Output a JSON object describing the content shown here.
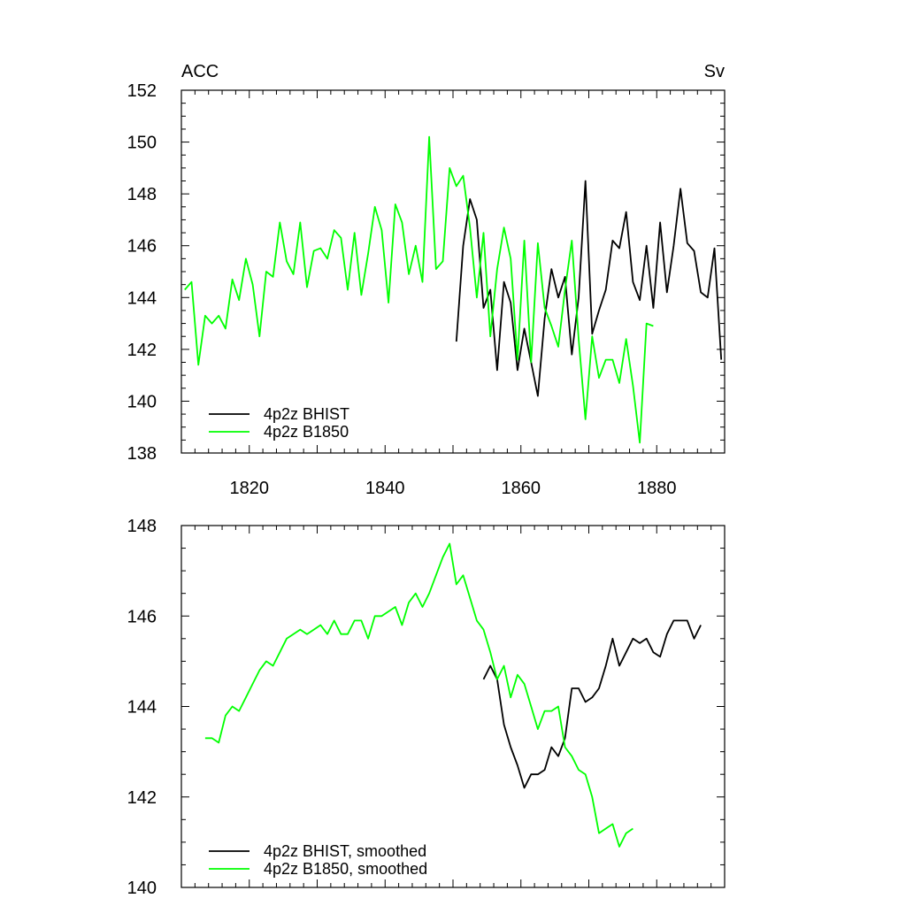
{
  "chart_data": [
    {
      "type": "line",
      "left_string": "ACC",
      "right_string": "Sv",
      "xlim": [
        1810,
        1890
      ],
      "ylim": [
        138,
        152
      ],
      "xticks": [
        1820,
        1840,
        1860,
        1880
      ],
      "yticks": [
        138,
        140,
        142,
        144,
        146,
        148,
        150,
        152
      ],
      "x_tick_labels": [
        "1820",
        "1840",
        "1860",
        "1880"
      ],
      "y_tick_labels": [
        "138",
        "140",
        "142",
        "144",
        "146",
        "148",
        "150",
        "152"
      ],
      "grid": false,
      "legend_position": "bottom-left",
      "series": [
        {
          "name": "4p2z BHIST",
          "color": "#000000",
          "x": [
            1850.5,
            1851.5,
            1852.5,
            1853.5,
            1854.5,
            1855.5,
            1856.5,
            1857.5,
            1858.5,
            1859.5,
            1860.5,
            1861.5,
            1862.5,
            1863.5,
            1864.5,
            1865.5,
            1866.5,
            1867.5,
            1868.5,
            1869.5,
            1870.5,
            1871.5,
            1872.5,
            1873.5,
            1874.5,
            1875.5,
            1876.5,
            1877.5,
            1878.5,
            1879.5,
            1880.5,
            1881.5,
            1882.5,
            1883.5,
            1884.5,
            1885.5,
            1886.5,
            1887.5,
            1888.5,
            1889.5
          ],
          "values": [
            142.3,
            146.0,
            147.8,
            147.0,
            143.6,
            144.3,
            141.2,
            144.6,
            143.8,
            141.2,
            142.8,
            141.5,
            140.2,
            143.2,
            145.1,
            144.0,
            144.8,
            141.8,
            144.0,
            148.5,
            142.6,
            143.5,
            144.3,
            146.2,
            145.9,
            147.3,
            144.6,
            143.9,
            146.0,
            143.6,
            146.9,
            144.2,
            146.0,
            148.2,
            146.1,
            145.8,
            144.2,
            144.0,
            145.9,
            141.6
          ]
        },
        {
          "name": "4p2z B1850",
          "color": "#00ff00",
          "x": [
            1810.5,
            1811.5,
            1812.5,
            1813.5,
            1814.5,
            1815.5,
            1816.5,
            1817.5,
            1818.5,
            1819.5,
            1820.5,
            1821.5,
            1822.5,
            1823.5,
            1824.5,
            1825.5,
            1826.5,
            1827.5,
            1828.5,
            1829.5,
            1830.5,
            1831.5,
            1832.5,
            1833.5,
            1834.5,
            1835.5,
            1836.5,
            1837.5,
            1838.5,
            1839.5,
            1840.5,
            1841.5,
            1842.5,
            1843.5,
            1844.5,
            1845.5,
            1846.5,
            1847.5,
            1848.5,
            1849.5,
            1850.5,
            1851.5,
            1852.5,
            1853.5,
            1854.5,
            1855.5,
            1856.5,
            1857.5,
            1858.5,
            1859.5,
            1860.5,
            1861.5,
            1862.5,
            1863.5,
            1864.5,
            1865.5,
            1866.5,
            1867.5,
            1868.5,
            1869.5,
            1870.5,
            1871.5,
            1872.5,
            1873.5,
            1874.5,
            1875.5,
            1876.5,
            1877.5,
            1878.5,
            1879.5
          ],
          "values": [
            144.3,
            144.6,
            141.4,
            143.3,
            143.0,
            143.3,
            142.8,
            144.7,
            143.9,
            145.5,
            144.5,
            142.5,
            145.0,
            144.8,
            146.9,
            145.4,
            144.9,
            146.9,
            144.4,
            145.8,
            145.9,
            145.5,
            146.6,
            146.3,
            144.3,
            146.5,
            144.1,
            145.7,
            147.5,
            146.6,
            143.8,
            147.6,
            146.9,
            144.9,
            146.0,
            144.6,
            150.2,
            145.1,
            145.4,
            149.0,
            148.3,
            148.7,
            146.7,
            144.0,
            146.5,
            142.5,
            145.1,
            146.7,
            145.5,
            141.6,
            146.2,
            141.5,
            146.1,
            143.6,
            142.9,
            142.1,
            144.3,
            146.2,
            142.4,
            139.3,
            142.5,
            140.9,
            141.6,
            141.6,
            140.7,
            142.4,
            140.6,
            138.4,
            143.0,
            142.9
          ]
        }
      ]
    },
    {
      "type": "line",
      "xlim": [
        1810,
        1890
      ],
      "ylim": [
        140,
        148
      ],
      "xticks": [
        1820,
        1840,
        1860,
        1880
      ],
      "yticks": [
        140,
        142,
        144,
        146,
        148
      ],
      "y_tick_labels": [
        "140",
        "142",
        "144",
        "146",
        "148"
      ],
      "grid": false,
      "legend_position": "bottom-left",
      "series": [
        {
          "name": "4p2z BHIST, smoothed",
          "color": "#000000",
          "x": [
            1854.5,
            1855.5,
            1856.5,
            1857.5,
            1858.5,
            1859.5,
            1860.5,
            1861.5,
            1862.5,
            1863.5,
            1864.5,
            1865.5,
            1866.5,
            1867.5,
            1868.5,
            1869.5,
            1870.5,
            1871.5,
            1872.5,
            1873.5,
            1874.5,
            1875.5,
            1876.5,
            1877.5,
            1878.5,
            1879.5,
            1880.5,
            1881.5,
            1882.5,
            1883.5,
            1884.5,
            1885.5,
            1886.5
          ],
          "values": [
            144.6,
            144.9,
            144.6,
            143.6,
            143.1,
            142.7,
            142.2,
            142.5,
            142.5,
            142.6,
            143.1,
            142.9,
            143.3,
            144.4,
            144.4,
            144.1,
            144.2,
            144.4,
            144.9,
            145.5,
            144.9,
            145.2,
            145.5,
            145.4,
            145.5,
            145.2,
            145.1,
            145.6,
            145.9,
            145.9,
            145.9,
            145.5,
            145.8
          ]
        },
        {
          "name": "4p2z B1850, smoothed",
          "color": "#00ff00",
          "x": [
            1813.5,
            1814.5,
            1815.5,
            1816.5,
            1817.5,
            1818.5,
            1819.5,
            1820.5,
            1821.5,
            1822.5,
            1823.5,
            1824.5,
            1825.5,
            1826.5,
            1827.5,
            1828.5,
            1829.5,
            1830.5,
            1831.5,
            1832.5,
            1833.5,
            1834.5,
            1835.5,
            1836.5,
            1837.5,
            1838.5,
            1839.5,
            1840.5,
            1841.5,
            1842.5,
            1843.5,
            1844.5,
            1845.5,
            1846.5,
            1847.5,
            1848.5,
            1849.5,
            1850.5,
            1851.5,
            1852.5,
            1853.5,
            1854.5,
            1855.5,
            1856.5,
            1857.5,
            1858.5,
            1859.5,
            1860.5,
            1861.5,
            1862.5,
            1863.5,
            1864.5,
            1865.5,
            1866.5,
            1867.5,
            1868.5,
            1869.5,
            1870.5,
            1871.5,
            1872.5,
            1873.5,
            1874.5,
            1875.5,
            1876.5
          ],
          "values": [
            143.3,
            143.3,
            143.2,
            143.8,
            144.0,
            143.9,
            144.2,
            144.5,
            144.8,
            145.0,
            144.9,
            145.2,
            145.5,
            145.6,
            145.7,
            145.6,
            145.7,
            145.8,
            145.6,
            145.9,
            145.6,
            145.6,
            145.9,
            145.9,
            145.5,
            146.0,
            146.0,
            146.1,
            146.2,
            145.8,
            146.3,
            146.5,
            146.2,
            146.5,
            146.9,
            147.3,
            147.6,
            146.7,
            146.9,
            146.4,
            145.9,
            145.7,
            145.2,
            144.6,
            144.9,
            144.2,
            144.7,
            144.5,
            144.0,
            143.5,
            143.9,
            143.9,
            144.0,
            143.1,
            142.9,
            142.6,
            142.5,
            142.0,
            141.2,
            141.3,
            141.4,
            140.9,
            141.2,
            141.3
          ]
        }
      ]
    }
  ]
}
